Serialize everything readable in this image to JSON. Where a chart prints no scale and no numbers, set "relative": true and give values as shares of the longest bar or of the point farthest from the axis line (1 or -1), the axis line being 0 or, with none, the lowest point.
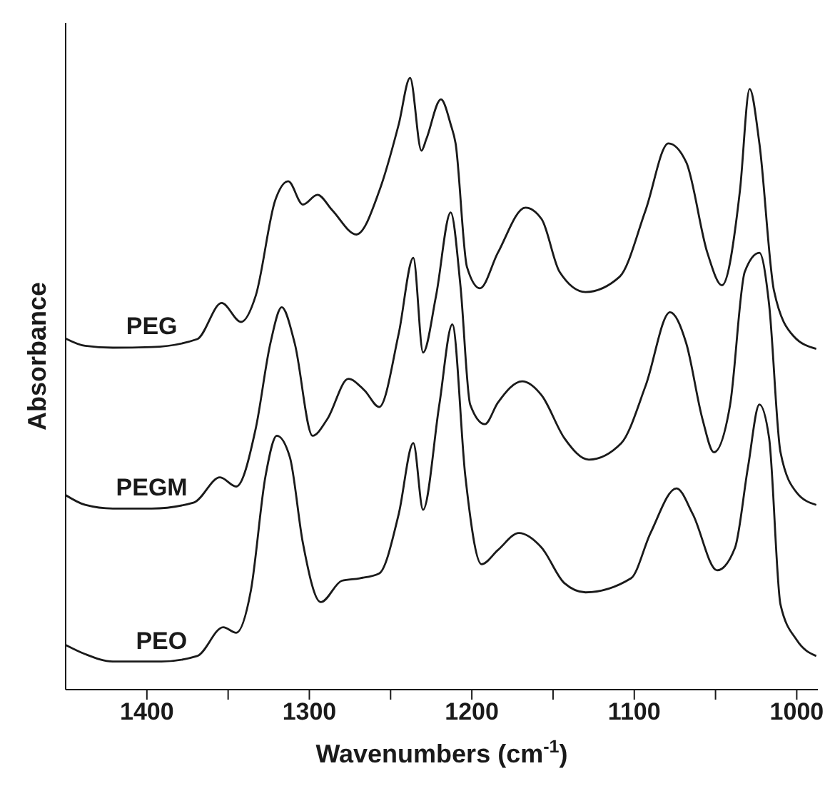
{
  "chart_data": {
    "type": "line",
    "relative": true,
    "xlabel": "Wavenumbers (cm$^{-1}$)",
    "ylabel": "Absorbance",
    "xlim": [
      1450,
      987
    ],
    "xticks": [
      1400,
      {
        "value": 1350,
        "label": null
      },
      1300,
      {
        "value": 1250,
        "label": null
      },
      1200,
      {
        "value": 1150,
        "label": null
      },
      1100,
      {
        "value": 1050,
        "label": null
      },
      1000
    ],
    "tick_labels": "x",
    "series": [
      {
        "name": "PEG",
        "color": "#1a1a1a",
        "x": [
          1450,
          1438,
          1421,
          1397,
          1369,
          1354,
          1342,
          1333,
          1321,
          1313,
          1304,
          1295,
          1286,
          1271,
          1257,
          1245,
          1238,
          1231,
          1228,
          1219,
          1213,
          1210,
          1203,
          1195,
          1184,
          1167,
          1157,
          1146,
          1130,
          1109,
          1093,
          1079,
          1068,
          1055,
          1046,
          1035,
          1029,
          1023,
          1014,
          1002,
          988
        ],
        "values": [
          0.574,
          0.562,
          0.559,
          0.56,
          0.573,
          0.632,
          0.601,
          0.644,
          0.8,
          0.831,
          0.793,
          0.809,
          0.784,
          0.744,
          0.815,
          0.924,
          1,
          0.881,
          0.9,
          0.965,
          0.924,
          0.893,
          0.691,
          0.656,
          0.714,
          0.788,
          0.769,
          0.683,
          0.65,
          0.675,
          0.784,
          0.893,
          0.862,
          0.714,
          0.661,
          0.815,
          0.982,
          0.893,
          0.652,
          0.578,
          0.557
        ]
      },
      {
        "name": "PEGM",
        "color": "#1a1a1a",
        "x": [
          1450,
          1438,
          1421,
          1397,
          1371,
          1355,
          1345,
          1333,
          1324,
          1317,
          1309,
          1298,
          1289,
          1276,
          1266,
          1257,
          1245,
          1236,
          1230,
          1222,
          1213,
          1207,
          1201,
          1192,
          1184,
          1169,
          1157,
          1143,
          1128,
          1108,
          1093,
          1078,
          1068,
          1058,
          1051,
          1041,
          1032,
          1023,
          1017,
          1010,
          1000,
          988
        ],
        "values": [
          0.318,
          0.302,
          0.296,
          0.296,
          0.306,
          0.347,
          0.332,
          0.427,
          0.566,
          0.625,
          0.566,
          0.415,
          0.442,
          0.508,
          0.489,
          0.462,
          0.582,
          0.706,
          0.551,
          0.644,
          0.78,
          0.66,
          0.466,
          0.434,
          0.469,
          0.504,
          0.481,
          0.411,
          0.376,
          0.403,
          0.497,
          0.617,
          0.566,
          0.442,
          0.388,
          0.466,
          0.683,
          0.714,
          0.629,
          0.388,
          0.322,
          0.302
        ]
      },
      {
        "name": "PEO",
        "color": "#1a1a1a",
        "x": [
          1450,
          1438,
          1421,
          1391,
          1369,
          1353,
          1345,
          1336,
          1327,
          1320,
          1312,
          1304,
          1293,
          1280,
          1269,
          1257,
          1245,
          1236,
          1230,
          1220,
          1212,
          1204,
          1194,
          1184,
          1171,
          1157,
          1143,
          1130,
          1102,
          1090,
          1074,
          1064,
          1049,
          1038,
          1030,
          1023,
          1017,
          1010,
          1000,
          988
        ],
        "values": [
          0.073,
          0.058,
          0.046,
          0.046,
          0.055,
          0.102,
          0.093,
          0.162,
          0.349,
          0.415,
          0.38,
          0.24,
          0.143,
          0.178,
          0.182,
          0.19,
          0.287,
          0.403,
          0.294,
          0.466,
          0.597,
          0.349,
          0.205,
          0.228,
          0.256,
          0.232,
          0.174,
          0.159,
          0.182,
          0.256,
          0.329,
          0.287,
          0.195,
          0.232,
          0.364,
          0.466,
          0.411,
          0.139,
          0.081,
          0.055
        ]
      }
    ]
  }
}
